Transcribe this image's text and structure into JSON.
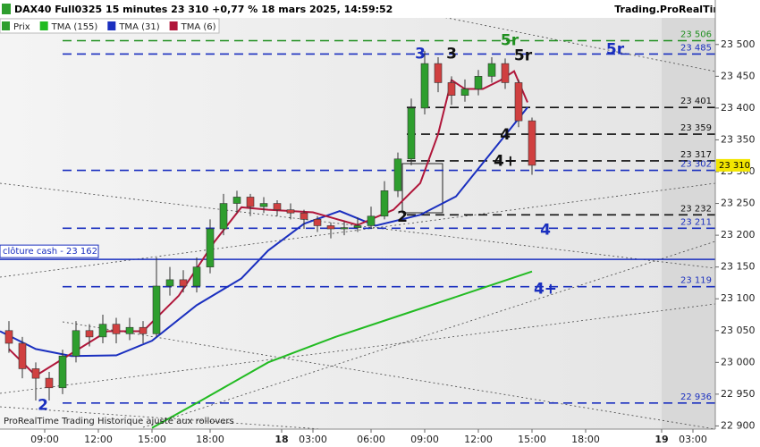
{
  "chart_data": {
    "type": "candlestick",
    "title": "DAX40 Full0325 15 minutes 23 310 +0,77 % 18 mars 2025, 14:59:52",
    "source": "Trading.ProRealTime.com",
    "footer": "ProRealTime Trading  Historique ajusté aux rollovers",
    "xlim": [
      -10,
      150
    ],
    "ylim": [
      22895,
      23570
    ],
    "xticks": [
      {
        "value": 0,
        "label": "09:00"
      },
      {
        "value": 12,
        "label": "12:00"
      },
      {
        "value": 24,
        "label": "15:00"
      },
      {
        "value": 37,
        "label": "18:00"
      },
      {
        "value": 53,
        "label": "18"
      },
      {
        "value": 60,
        "label": "03:00"
      },
      {
        "value": 73,
        "label": "06:00"
      },
      {
        "value": 85,
        "label": "09:00"
      },
      {
        "value": 97,
        "label": "12:00"
      },
      {
        "value": 109,
        "label": "15:00"
      },
      {
        "value": 121,
        "label": "18:00"
      },
      {
        "value": 138,
        "label": "19"
      },
      {
        "value": 145,
        "label": "03:00"
      }
    ],
    "yticks": [
      {
        "value": 22900,
        "label": "22 900"
      },
      {
        "value": 22950,
        "label": "22 950"
      },
      {
        "value": 23000,
        "label": "23 000"
      },
      {
        "value": 23050,
        "label": "23 050"
      },
      {
        "value": 23100,
        "label": "23 100"
      },
      {
        "value": 23150,
        "label": "23 150"
      },
      {
        "value": 23200,
        "label": "23 200"
      },
      {
        "value": 23250,
        "label": "23 250"
      },
      {
        "value": 23300,
        "label": "23 300"
      },
      {
        "value": 23350,
        "label": "23 350"
      },
      {
        "value": 23400,
        "label": "23 400"
      },
      {
        "value": 23450,
        "label": "23 450"
      },
      {
        "value": 23500,
        "label": "23 500"
      }
    ],
    "price": {
      "name": "Prix",
      "up_color": "#2e9e2e",
      "down_color": "#d04040",
      "x": [
        -8,
        -5,
        -2,
        1,
        4,
        7,
        10,
        13,
        16,
        19,
        22,
        25,
        28,
        31,
        34,
        37,
        40,
        43,
        46,
        49,
        52,
        55,
        58,
        61,
        64,
        67,
        70,
        73,
        76,
        79,
        82,
        85,
        88,
        91,
        94,
        97,
        100,
        103,
        106,
        109
      ],
      "open": [
        23050,
        23030,
        22990,
        22975,
        22960,
        23010,
        23050,
        23040,
        23060,
        23045,
        23055,
        23045,
        23120,
        23130,
        23120,
        23150,
        23210,
        23250,
        23260,
        23245,
        23250,
        23240,
        23235,
        23225,
        23215,
        23210,
        23212,
        23215,
        23230,
        23270,
        23320,
        23400,
        23470,
        23440,
        23420,
        23430,
        23450,
        23470,
        23440,
        23380
      ],
      "high": [
        23065,
        23040,
        23000,
        22985,
        23020,
        23065,
        23060,
        23075,
        23070,
        23070,
        23065,
        23165,
        23150,
        23145,
        23165,
        23225,
        23265,
        23270,
        23265,
        23260,
        23255,
        23250,
        23240,
        23230,
        23220,
        23222,
        23228,
        23245,
        23285,
        23330,
        23415,
        23490,
        23480,
        23450,
        23445,
        23460,
        23480,
        23478,
        23445,
        23385
      ],
      "low": [
        23015,
        22975,
        22940,
        22940,
        22950,
        23000,
        23025,
        23030,
        23030,
        23035,
        23030,
        23040,
        23105,
        23110,
        23110,
        23140,
        23200,
        23235,
        23230,
        23235,
        23230,
        23225,
        23210,
        23205,
        23195,
        23200,
        23205,
        23210,
        23225,
        23260,
        23310,
        23390,
        23425,
        23405,
        23410,
        23420,
        23440,
        23430,
        23370,
        23295
      ],
      "close": [
        23030,
        22990,
        22975,
        22960,
        23010,
        23050,
        23040,
        23060,
        23045,
        23055,
        23045,
        23120,
        23130,
        23120,
        23150,
        23210,
        23250,
        23260,
        23245,
        23250,
        23240,
        23235,
        23225,
        23215,
        23210,
        23212,
        23215,
        23230,
        23270,
        23320,
        23400,
        23470,
        23440,
        23420,
        23430,
        23450,
        23470,
        23440,
        23380,
        23310
      ]
    },
    "series": [
      {
        "name": "TMA (155)",
        "color": "#22bb22",
        "x": [
          24,
          35,
          50,
          65,
          80,
          95,
          109
        ],
        "values": [
          22897,
          22940,
          23000,
          23040,
          23075,
          23110,
          23143
        ]
      },
      {
        "name": "TMA (31)",
        "color": "#1a2fbf",
        "x": [
          -10,
          -2,
          6,
          16,
          24,
          34,
          44,
          50,
          58,
          66,
          74,
          84,
          92,
          100,
          108
        ],
        "values": [
          23049,
          23021,
          23010,
          23011,
          23034,
          23090,
          23132,
          23176,
          23218,
          23238,
          23215,
          23232,
          23261,
          23331,
          23401
        ]
      },
      {
        "name": "TMA (6)",
        "color": "#b0163a",
        "x": [
          -8,
          -2,
          6,
          14,
          22,
          30,
          38,
          44,
          50,
          60,
          70,
          78,
          84,
          88,
          91,
          94,
          98,
          102,
          105,
          108
        ],
        "values": [
          23021,
          22979,
          23014,
          23049,
          23049,
          23105,
          23190,
          23244,
          23240,
          23236,
          23216,
          23240,
          23282,
          23359,
          23444,
          23430,
          23430,
          23444,
          23458,
          23409
        ]
      }
    ],
    "levels": [
      {
        "value": 23506,
        "label": "23 506",
        "color": "#1f8f1f"
      },
      {
        "value": 23485,
        "label": "23 485",
        "color": "#1a2fbf"
      },
      {
        "value": 23401,
        "label": "23 401",
        "color": "#111111"
      },
      {
        "value": 23359,
        "label": "23 359",
        "color": "#111111"
      },
      {
        "value": 23317,
        "label": "23 317",
        "color": "#111111"
      },
      {
        "value": 23302,
        "label": "23 302",
        "color": "#1a2fbf"
      },
      {
        "value": 23232,
        "label": "23 232",
        "color": "#111111"
      },
      {
        "value": 23211,
        "label": "23 211",
        "color": "#1a2fbf"
      },
      {
        "value": 23119,
        "label": "23 119",
        "color": "#1a2fbf"
      },
      {
        "value": 22936,
        "label": "22 936",
        "color": "#1a2fbf"
      }
    ],
    "cash_close": {
      "value": 23162,
      "label": "clôture cash -  23 162",
      "color": "#1a2fbf"
    },
    "last_price": {
      "value": 23310,
      "label": "23 310",
      "color": "#f2e600"
    },
    "annotations": [
      {
        "text": "3",
        "x": 84,
        "y": 23485,
        "color": "#1a2fbf"
      },
      {
        "text": "3",
        "x": 91,
        "y": 23485,
        "color": "#111111"
      },
      {
        "text": "5r",
        "x": 104,
        "y": 23506,
        "color": "#1f8f1f"
      },
      {
        "text": "5r",
        "x": 107,
        "y": 23482,
        "color": "#111111"
      },
      {
        "text": "5r",
        "x": 127.6,
        "y": 23492,
        "color": "#1a2fbf"
      },
      {
        "text": "4",
        "x": 103,
        "y": 23358,
        "color": "#111111"
      },
      {
        "text": "4+",
        "x": 103,
        "y": 23316,
        "color": "#111111"
      },
      {
        "text": "2",
        "x": 80,
        "y": 23228,
        "color": "#111111"
      },
      {
        "text": "4",
        "x": 112,
        "y": 23208,
        "color": "#1a2fbf"
      },
      {
        "text": "4+",
        "x": 112,
        "y": 23115,
        "color": "#1a2fbf"
      },
      {
        "text": "2",
        "x": -0.4,
        "y": 22932,
        "color": "#1a2fbf"
      }
    ]
  }
}
